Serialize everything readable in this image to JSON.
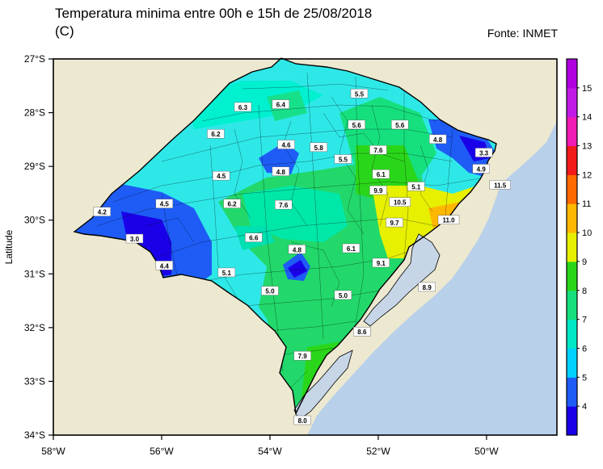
{
  "title": "Temperatura minima entre 00h e 15h de 25/08/2018\n(C)",
  "source": "Fonte: INMET",
  "colors": {
    "land_bg": "#ede8d0",
    "ocean": "#b8d0ea",
    "lagoon": "#c6d6e6",
    "border": "#000000"
  },
  "chart_data": {
    "type": "map",
    "ylabel": "Latitude",
    "lon_range": [
      -58,
      -48.7
    ],
    "lat_range": [
      -34,
      -27
    ],
    "lat_ticks": [
      "27°S",
      "28°S",
      "29°S",
      "30°S",
      "31°S",
      "32°S",
      "33°S",
      "34°S"
    ],
    "lon_ticks": [
      "58°W",
      "56°W",
      "54°W",
      "52°W",
      "50°W"
    ],
    "colorbar": {
      "labels": [
        "4",
        "5",
        "6",
        "7",
        "8",
        "9",
        "10",
        "11",
        "12",
        "13",
        "14",
        "15"
      ],
      "colors": [
        "#1a00e8",
        "#1e5cf5",
        "#00d2ff",
        "#00e8c6",
        "#16e07e",
        "#2ad61a",
        "#e6f000",
        "#ffb800",
        "#ff6a00",
        "#f21a1a",
        "#f01ab4",
        "#c21ae6",
        "#b000e0"
      ]
    },
    "stations": [
      {
        "label": "6.3",
        "lon": -54.5,
        "lat": -27.9
      },
      {
        "label": "6.4",
        "lon": -53.8,
        "lat": -27.85
      },
      {
        "label": "5.5",
        "lon": -52.35,
        "lat": -27.65
      },
      {
        "label": "5.6",
        "lon": -52.4,
        "lat": -28.23
      },
      {
        "label": "5.6",
        "lon": -51.6,
        "lat": -28.23
      },
      {
        "label": "6.2",
        "lon": -55.0,
        "lat": -28.4
      },
      {
        "label": "4.6",
        "lon": -53.7,
        "lat": -28.6
      },
      {
        "label": "5.8",
        "lon": -53.1,
        "lat": -28.65
      },
      {
        "label": "4.8",
        "lon": -50.9,
        "lat": -28.5
      },
      {
        "label": "3.3",
        "lon": -50.05,
        "lat": -28.75
      },
      {
        "label": "7.6",
        "lon": -52.0,
        "lat": -28.7
      },
      {
        "label": "5.5",
        "lon": -52.65,
        "lat": -28.87
      },
      {
        "label": "4.8",
        "lon": -53.8,
        "lat": -29.1
      },
      {
        "label": "4.9",
        "lon": -50.1,
        "lat": -29.05
      },
      {
        "label": "4.5",
        "lon": -54.9,
        "lat": -29.18
      },
      {
        "label": "6.1",
        "lon": -51.95,
        "lat": -29.15
      },
      {
        "label": "5.1",
        "lon": -51.3,
        "lat": -29.38
      },
      {
        "label": "11.5",
        "lon": -49.75,
        "lat": -29.35
      },
      {
        "label": "9.9",
        "lon": -52.0,
        "lat": -29.45
      },
      {
        "label": "4.2",
        "lon": -57.1,
        "lat": -29.85
      },
      {
        "label": "4.5",
        "lon": -55.95,
        "lat": -29.7
      },
      {
        "label": "6.2",
        "lon": -54.7,
        "lat": -29.7
      },
      {
        "label": "7.6",
        "lon": -53.75,
        "lat": -29.72
      },
      {
        "label": "10.5",
        "lon": -51.6,
        "lat": -29.67
      },
      {
        "label": "9.7",
        "lon": -51.7,
        "lat": -30.05
      },
      {
        "label": "11.0",
        "lon": -50.7,
        "lat": -30.0
      },
      {
        "label": "3.0",
        "lon": -56.5,
        "lat": -30.35
      },
      {
        "label": "6.6",
        "lon": -54.3,
        "lat": -30.33
      },
      {
        "label": "4.8",
        "lon": -53.5,
        "lat": -30.55
      },
      {
        "label": "6.1",
        "lon": -52.5,
        "lat": -30.53
      },
      {
        "label": "4.4",
        "lon": -55.95,
        "lat": -30.85
      },
      {
        "label": "9.1",
        "lon": -51.95,
        "lat": -30.8
      },
      {
        "label": "5.1",
        "lon": -54.8,
        "lat": -30.98
      },
      {
        "label": "5.0",
        "lon": -54.0,
        "lat": -31.32
      },
      {
        "label": "5.0",
        "lon": -52.65,
        "lat": -31.4
      },
      {
        "label": "8.9",
        "lon": -51.1,
        "lat": -31.25
      },
      {
        "label": "8.6",
        "lon": -52.3,
        "lat": -32.08
      },
      {
        "label": "7.9",
        "lon": -53.4,
        "lat": -32.53
      },
      {
        "label": "8.0",
        "lon": -53.4,
        "lat": -33.73
      }
    ]
  }
}
